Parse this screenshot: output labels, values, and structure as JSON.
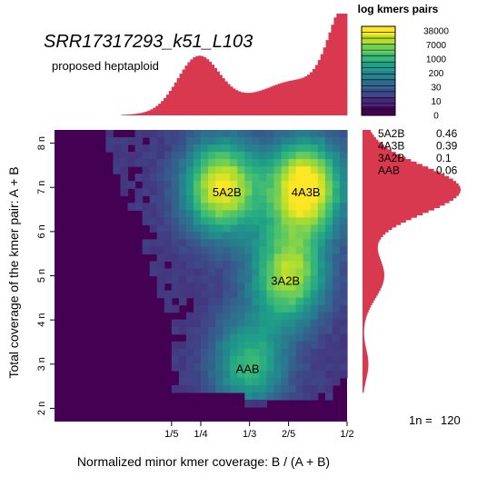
{
  "chart_data": {
    "type": "heatmap",
    "title": "SRR17317293_k51_L103",
    "subtitle": "proposed heptaploid",
    "xlabel": "Normalized minor kmer coverage: B / (A + B)",
    "ylabel": "Total coverage of the kmer pair: A + B",
    "x_ticks": [
      {
        "value": 0.2,
        "label": "1/5"
      },
      {
        "value": 0.25,
        "label": "1/4"
      },
      {
        "value": 0.3333,
        "label": "1/3"
      },
      {
        "value": 0.4,
        "label": "2/5"
      },
      {
        "value": 0.5,
        "label": "1/2"
      }
    ],
    "y_ticks": [
      {
        "value": 2,
        "label": "2 n"
      },
      {
        "value": 3,
        "label": "3 n"
      },
      {
        "value": 4,
        "label": "4 n"
      },
      {
        "value": 5,
        "label": "5 n"
      },
      {
        "value": 6,
        "label": "6 n"
      },
      {
        "value": 7,
        "label": "7 n"
      },
      {
        "value": 8,
        "label": "8 n"
      }
    ],
    "xlim": [
      0,
      0.5
    ],
    "ylim": [
      1.7,
      8.3
    ],
    "peaks": [
      {
        "label": "5A2B",
        "x": 0.2857,
        "y": 7,
        "intensity": 0.85
      },
      {
        "label": "4A3B",
        "x": 0.4286,
        "y": 7,
        "intensity": 0.95
      },
      {
        "label": "3A2B",
        "x": 0.4,
        "y": 5,
        "intensity": 0.72
      },
      {
        "label": "AAB",
        "x": 0.3333,
        "y": 3,
        "intensity": 0.5
      }
    ],
    "peak_annotations": [
      {
        "label": "5A2B",
        "x": 0.27,
        "y": 6.9
      },
      {
        "label": "4A3B",
        "x": 0.405,
        "y": 6.9
      },
      {
        "label": "3A2B",
        "x": 0.37,
        "y": 4.9
      },
      {
        "label": "AAB",
        "x": 0.31,
        "y": 2.9
      }
    ],
    "legend": {
      "title": "log kmers pairs",
      "labels": [
        "38000",
        "7000",
        "1000",
        "200",
        "30",
        "10",
        "0"
      ],
      "colors": [
        "#fde725",
        "#b5de2b",
        "#6ece58",
        "#35b779",
        "#1f9e89",
        "#26828e",
        "#31688e",
        "#3e4989",
        "#482878",
        "#440154"
      ]
    },
    "proportions": [
      {
        "label": "5A2B",
        "value": "0.46"
      },
      {
        "label": "4A3B",
        "value": "0.39"
      },
      {
        "label": "3A2B",
        "value": "0.1"
      },
      {
        "label": "AAB",
        "value": "0.06"
      }
    ],
    "coverage_label": "1n =",
    "coverage_value": "120",
    "colors": {
      "histogram": "#d9394f",
      "background_cell": "#440154"
    }
  }
}
